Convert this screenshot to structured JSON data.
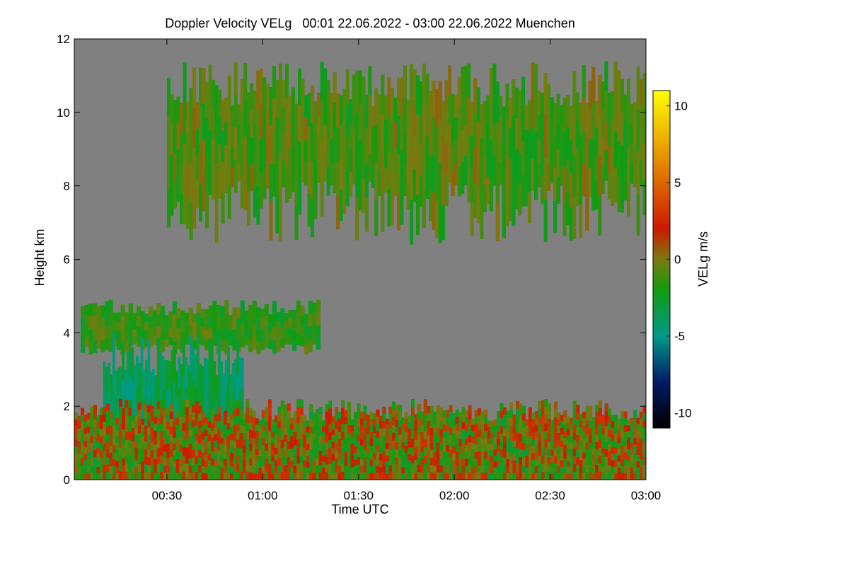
{
  "chart_data": {
    "type": "heatmap",
    "title": "Doppler Velocity VELg   00:01 22.06.2022 - 03:00 22.06.2022 Muenchen",
    "xlabel": "Time UTC",
    "ylabel": "Height km",
    "colorbar_label": "VELg m/s",
    "x_unit": "minutes after 00:00 UTC",
    "xlim": [
      1,
      180
    ],
    "ylim": [
      0,
      12
    ],
    "x_ticks": [
      {
        "value": 30,
        "label": "00:30"
      },
      {
        "value": 60,
        "label": "01:00"
      },
      {
        "value": 90,
        "label": "01:30"
      },
      {
        "value": 120,
        "label": "02:00"
      },
      {
        "value": 150,
        "label": "02:30"
      },
      {
        "value": 180,
        "label": "03:00"
      }
    ],
    "y_ticks": [
      {
        "value": 0,
        "label": "0"
      },
      {
        "value": 2,
        "label": "2"
      },
      {
        "value": 4,
        "label": "4"
      },
      {
        "value": 6,
        "label": "6"
      },
      {
        "value": 8,
        "label": "8"
      },
      {
        "value": 10,
        "label": "10"
      },
      {
        "value": 12,
        "label": "12"
      }
    ],
    "colorbar_range": [
      -11,
      11
    ],
    "colorbar_ticks": [
      {
        "value": 10,
        "label": "10"
      },
      {
        "value": 5,
        "label": "5"
      },
      {
        "value": 0,
        "label": "0"
      },
      {
        "value": -5,
        "label": "-5"
      },
      {
        "value": -10,
        "label": "-10"
      }
    ],
    "colorscale": [
      {
        "value": -11,
        "color": "#000000"
      },
      {
        "value": -8,
        "color": "#001a66"
      },
      {
        "value": -5,
        "color": "#009a8a"
      },
      {
        "value": -2,
        "color": "#109c10"
      },
      {
        "value": 0,
        "color": "#7a7a10"
      },
      {
        "value": 2,
        "color": "#cc1a00"
      },
      {
        "value": 6,
        "color": "#e38000"
      },
      {
        "value": 11,
        "color": "#ffff00"
      }
    ],
    "background_color": "#808080",
    "regions": [
      {
        "name": "upper cloud layer",
        "x_range": [
          30,
          180
        ],
        "height_range": [
          6.4,
          11.4
        ],
        "typical_velocity": -1
      },
      {
        "name": "mid-level cloud",
        "x_range": [
          3,
          78
        ],
        "height_range": [
          3.4,
          4.9
        ],
        "typical_velocity": -1.5
      },
      {
        "name": "fall streaks",
        "x_range": [
          10,
          54
        ],
        "height_range": [
          0,
          4
        ],
        "typical_velocity": -3.5
      },
      {
        "name": "boundary layer",
        "x_range": [
          1,
          180
        ],
        "height_range": [
          0,
          2.2
        ],
        "typical_velocity": 0
      }
    ]
  }
}
